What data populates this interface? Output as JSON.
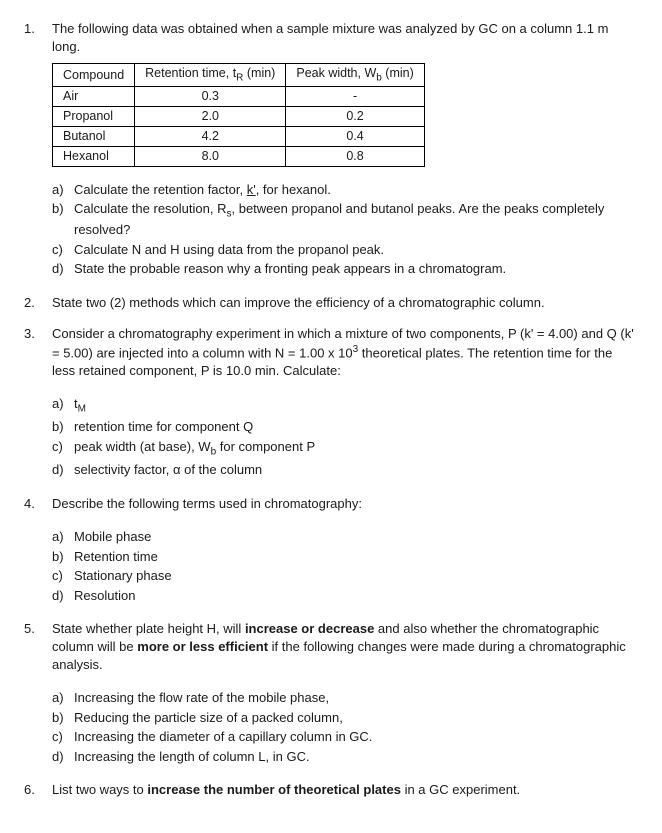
{
  "q1": {
    "num": "1.",
    "intro": "The following data was obtained when a sample mixture was analyzed by GC on a column 1.1 m long.",
    "table": {
      "headers": [
        "Compound",
        "Retention time, tR (min)",
        "Peak width, Wb (min)"
      ],
      "rows": [
        [
          "Air",
          "0.3",
          "-"
        ],
        [
          "Propanol",
          "2.0",
          "0.2"
        ],
        [
          "Butanol",
          "4.2",
          "0.4"
        ],
        [
          "Hexanol",
          "8.0",
          "0.8"
        ]
      ]
    },
    "subs": {
      "a": "Calculate the retention factor, k', for hexanol.",
      "b": "Calculate the resolution, Rs, between propanol and butanol peaks. Are the peaks completely resolved?",
      "c": "Calculate N and H using data from the propanol peak.",
      "d": "State the probable reason why a fronting peak appears in a chromatogram."
    }
  },
  "q2": {
    "num": "2.",
    "text": "State two (2) methods which can improve the efficiency of a chromatographic column."
  },
  "q3": {
    "num": "3.",
    "intro": "Consider a chromatography experiment in which a mixture of two components, P (k' = 4.00) and Q (k' = 5.00) are injected into a column with N = 1.00 x 10³ theoretical plates. The retention time for the less retained component, P is 10.0 min. Calculate:",
    "subs": {
      "a": "tM",
      "b": "retention time for component Q",
      "c": "peak width (at base), Wb for component P",
      "d": "selectivity factor, α of the column"
    }
  },
  "q4": {
    "num": "4.",
    "intro": "Describe the following terms used in chromatography:",
    "subs": {
      "a": "Mobile phase",
      "b": "Retention time",
      "c": "Stationary phase",
      "d": "Resolution"
    }
  },
  "q5": {
    "num": "5.",
    "intro_pre": "State whether plate height H, will ",
    "intro_b1": "increase or decrease",
    "intro_mid": " and also whether the chromatographic column will be ",
    "intro_b2": "more or less efficient",
    "intro_post": " if the following changes were made during a chromatographic analysis.",
    "subs": {
      "a": "Increasing the flow rate of the mobile phase,",
      "b": "Reducing the particle size of a packed column,",
      "c": "Increasing the diameter of a capillary column in GC.",
      "d": "Increasing the length of column L, in GC."
    }
  },
  "q6": {
    "num": "6.",
    "text_pre": "List two ways to ",
    "text_b": "increase the number of theoretical plates",
    "text_post": " in a GC experiment."
  },
  "labels": {
    "a": "a)",
    "b": "b)",
    "c": "c)",
    "d": "d)"
  }
}
